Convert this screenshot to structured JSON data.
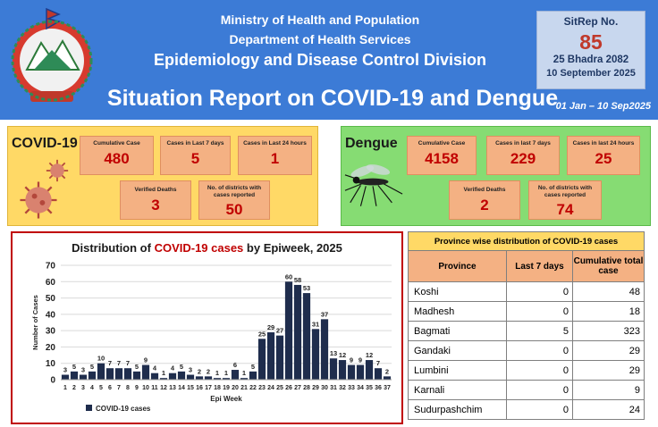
{
  "header": {
    "ministry": "Ministry of Health and Population",
    "department": "Department of Health Services",
    "division": "Epidemiology and Disease Control Division",
    "report_title": "Situation Report on COVID-19 and Dengue",
    "period": "01 Jan – 10 Sep2025",
    "sitrep": {
      "label": "SitRep No.",
      "number": "85",
      "date_nepali": "25 Bhadra 2082",
      "date_english": "10 September 2025"
    }
  },
  "covid": {
    "title": "COVID-19",
    "cards": [
      {
        "label": "Cumulative Case",
        "value": "480"
      },
      {
        "label": "Cases in Last 7 days",
        "value": "5"
      },
      {
        "label": "Cases in Last 24 hours",
        "value": "1"
      },
      {
        "label": "Verified Deaths",
        "value": "3"
      },
      {
        "label": "No. of districts with cases reported",
        "value": "50"
      }
    ]
  },
  "dengue": {
    "title": "Dengue",
    "cards": [
      {
        "label": "Cumulative Case",
        "value": "4158"
      },
      {
        "label": "Cases in last 7 days",
        "value": "229"
      },
      {
        "label": "Cases in last 24 hours",
        "value": "25"
      },
      {
        "label": "Verified Deaths",
        "value": "2"
      },
      {
        "label": "No. of districts with cases reported",
        "value": "74"
      }
    ]
  },
  "chart": {
    "title_prefix": "Distribution of ",
    "title_highlight": "COVID-19 cases",
    "title_suffix": " by Epiweek, 2025"
  },
  "chart_data": {
    "type": "bar",
    "xlabel": "Epi Week",
    "ylabel": "Number of Cases",
    "ylim": [
      0,
      70
    ],
    "yticks": [
      0,
      10,
      20,
      30,
      40,
      50,
      60,
      70
    ],
    "categories": [
      "1",
      "2",
      "3",
      "4",
      "5",
      "6",
      "7",
      "8",
      "9",
      "10",
      "11",
      "12",
      "13",
      "14",
      "15",
      "16",
      "17",
      "18",
      "19",
      "20",
      "21",
      "22",
      "23",
      "24",
      "25",
      "26",
      "27",
      "28",
      "29",
      "30",
      "31",
      "32",
      "33",
      "34",
      "35",
      "36",
      "37"
    ],
    "series": [
      {
        "name": "COVID-19 cases",
        "values": [
          3,
          5,
          3,
          5,
          10,
          7,
          7,
          7,
          5,
          9,
          4,
          1,
          4,
          5,
          3,
          2,
          2,
          1,
          1,
          6,
          1,
          5,
          25,
          29,
          27,
          60,
          58,
          53,
          31,
          37,
          13,
          12,
          9,
          9,
          12,
          7,
          2
        ]
      }
    ],
    "bar_color": "#1f2d4d",
    "grid": true,
    "legend": "bottom-left"
  },
  "province_table": {
    "caption": "Province wise distribution of COVID-19 cases",
    "headers": [
      "Province",
      "Last 7 days",
      "Cumulative total case"
    ],
    "rows": [
      {
        "province": "Koshi",
        "last7": "0",
        "total": "48"
      },
      {
        "province": "Madhesh",
        "last7": "0",
        "total": "18"
      },
      {
        "province": "Bagmati",
        "last7": "5",
        "total": "323"
      },
      {
        "province": "Gandaki",
        "last7": "0",
        "total": "29"
      },
      {
        "province": "Lumbini",
        "last7": "0",
        "total": "29"
      },
      {
        "province": "Karnali",
        "last7": "0",
        "total": "9"
      },
      {
        "province": "Sudurpashchim",
        "last7": "0",
        "total": "24"
      }
    ]
  },
  "colors": {
    "header_blue": "#3c7bd6",
    "covid_panel": "#ffd966",
    "dengue_panel": "#86dc73",
    "card": "#f4b183",
    "value_red": "#c00000"
  }
}
